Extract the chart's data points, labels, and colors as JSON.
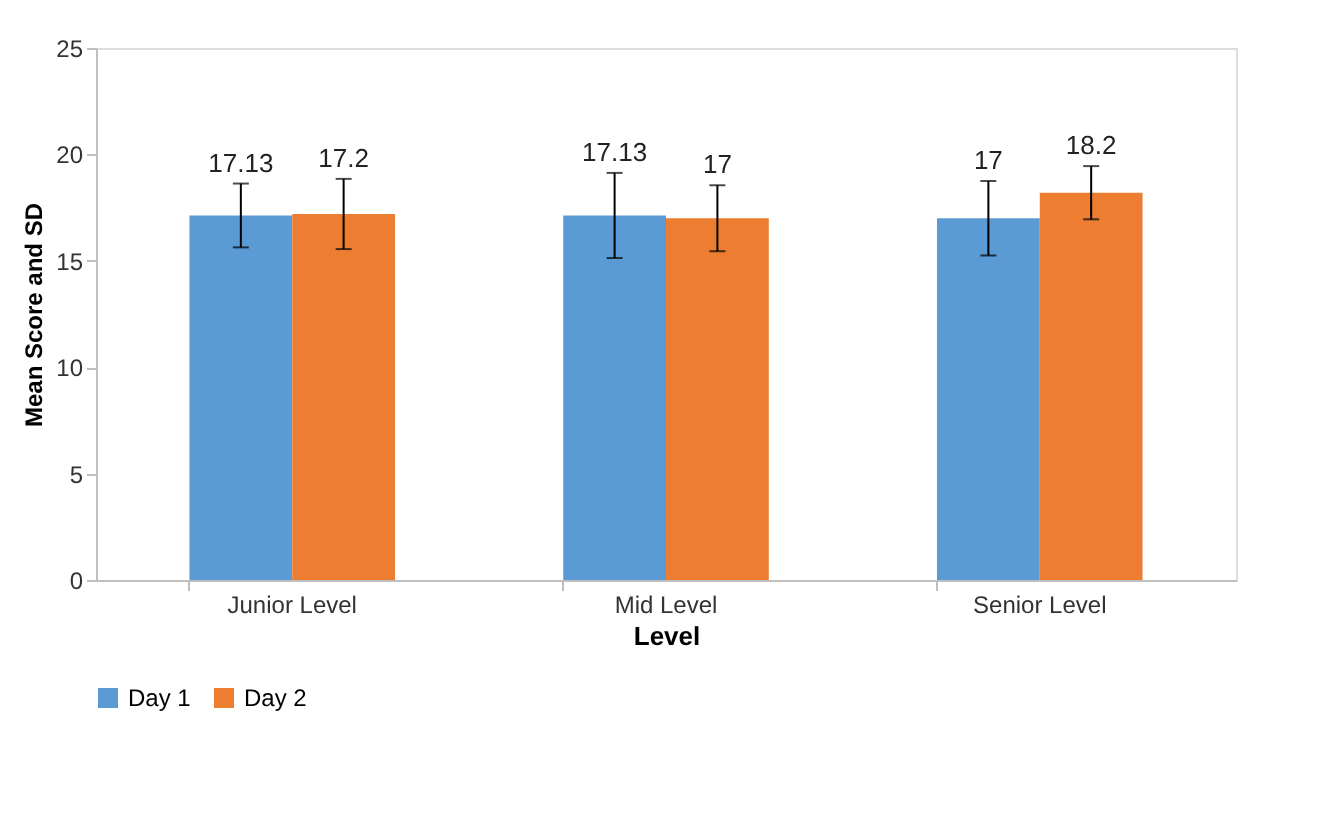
{
  "chart_data": {
    "type": "bar",
    "xlabel": "Level",
    "ylabel": "Mean Score and SD",
    "categories": [
      "Junior Level",
      "Mid Level",
      "Senior Level"
    ],
    "series": [
      {
        "name": "Day 1",
        "color": "#5b9bd5",
        "values": [
          17.13,
          17.13,
          17
        ],
        "errors": [
          1.5,
          2.0,
          1.75
        ]
      },
      {
        "name": "Day 2",
        "color": "#ed7d31",
        "values": [
          17.2,
          17,
          18.2
        ],
        "errors": [
          1.65,
          1.55,
          1.25
        ]
      }
    ],
    "ylim": [
      0,
      25
    ],
    "yticks": [
      0,
      5,
      10,
      15,
      20,
      25
    ],
    "grid": false,
    "legend": "bottom",
    "data_labels": true
  }
}
